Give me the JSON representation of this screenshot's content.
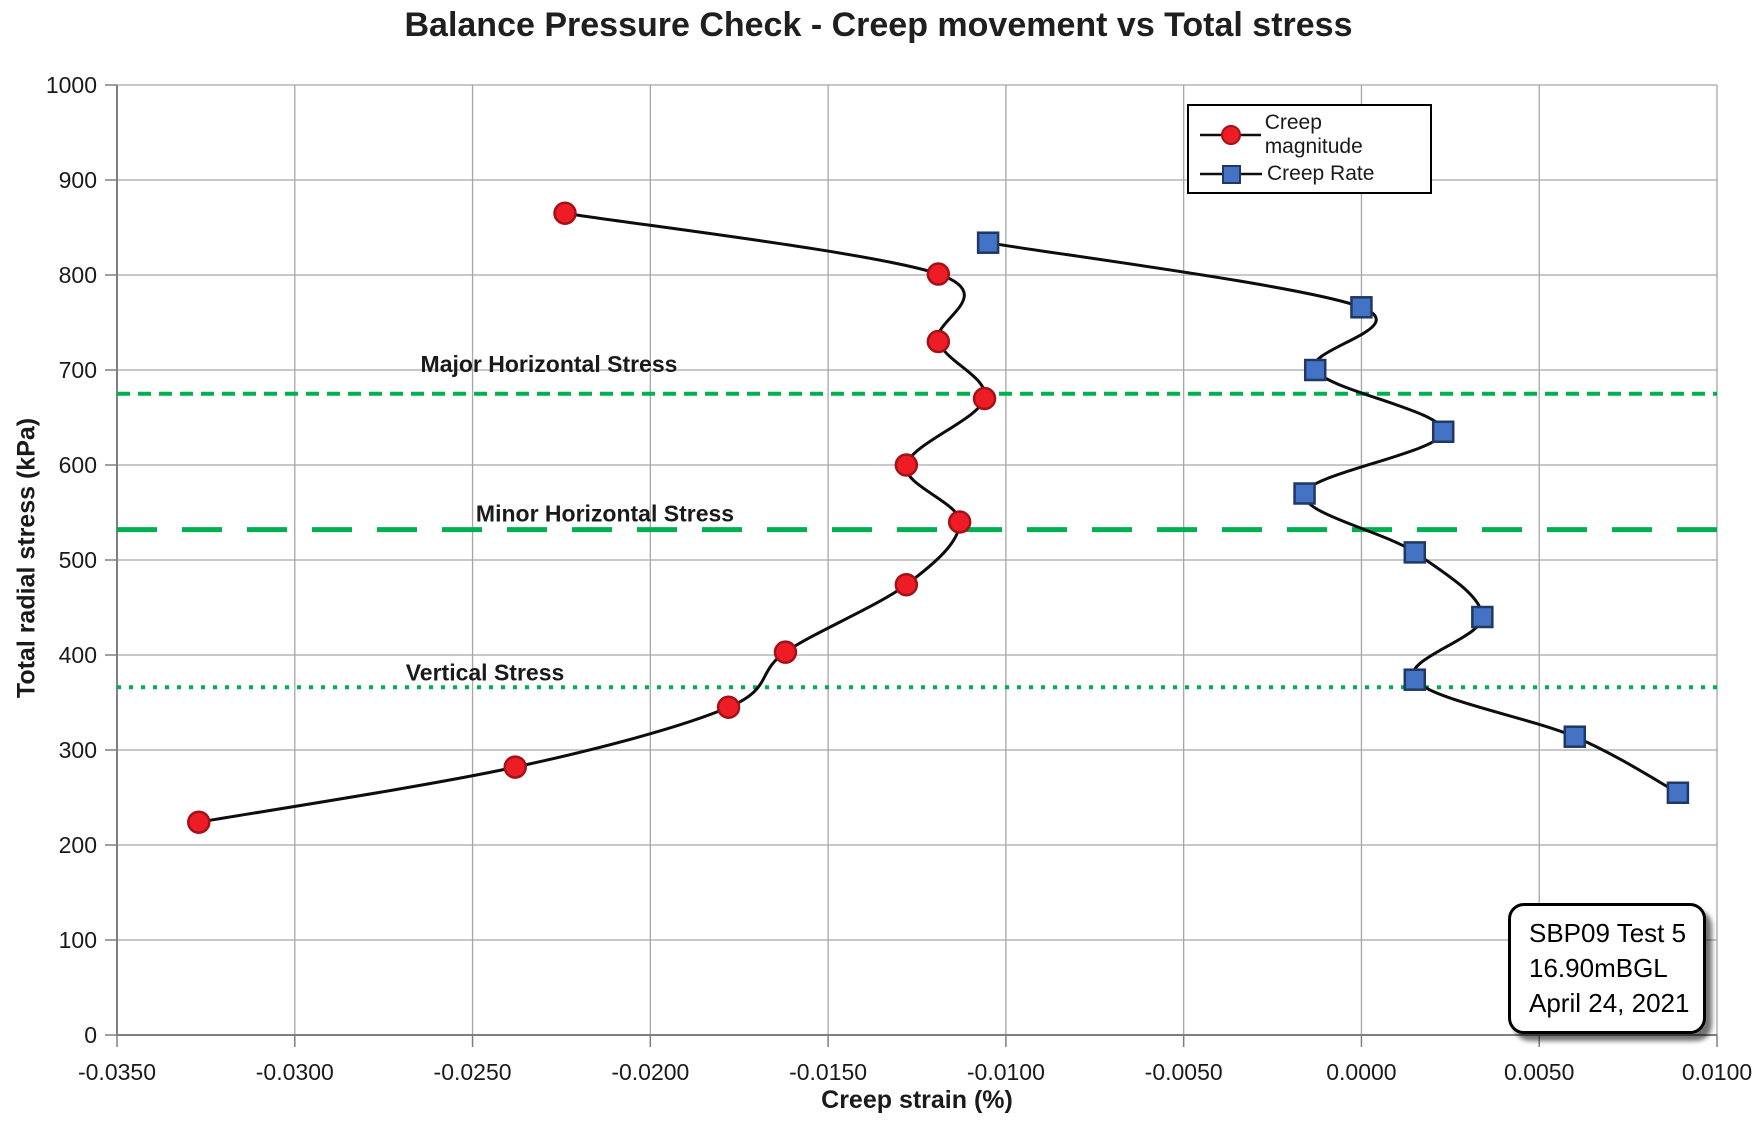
{
  "chart_data": {
    "type": "line",
    "title": "Balance Pressure Check - Creep movement vs Total stress",
    "xlabel": "Creep strain (%)",
    "ylabel": "Total radial stress (kPa)",
    "xlim": [
      -0.035,
      0.01
    ],
    "ylim": [
      0,
      1000
    ],
    "grid": true,
    "legend_position": "top-right",
    "x_ticks": [
      "-0.0350",
      "-0.0300",
      "-0.0250",
      "-0.0200",
      "-0.0150",
      "-0.0100",
      "-0.0050",
      "0.0000",
      "0.0050",
      "0.0100"
    ],
    "y_ticks": [
      "0",
      "100",
      "200",
      "300",
      "400",
      "500",
      "600",
      "700",
      "800",
      "900",
      "1000"
    ],
    "series": [
      {
        "name": "Creep magnitude",
        "marker": "circle",
        "marker_fill": "#ee1c25",
        "marker_stroke": "#a31218",
        "line_color": "#0d0d0d",
        "points": [
          [
            -0.0327,
            224
          ],
          [
            -0.0238,
            282
          ],
          [
            -0.0178,
            345
          ],
          [
            -0.0162,
            403
          ],
          [
            -0.0128,
            474
          ],
          [
            -0.0113,
            540
          ],
          [
            -0.0128,
            600
          ],
          [
            -0.0106,
            670
          ],
          [
            -0.0119,
            730
          ],
          [
            -0.0119,
            801
          ],
          [
            -0.0224,
            865
          ]
        ]
      },
      {
        "name": "Creep Rate",
        "marker": "square",
        "marker_fill": "#4472c4",
        "marker_stroke": "#1f3864",
        "line_color": "#0d0d0d",
        "points": [
          [
            0.0089,
            255
          ],
          [
            0.006,
            314
          ],
          [
            0.0015,
            374
          ],
          [
            0.0034,
            440
          ],
          [
            0.0015,
            508
          ],
          [
            -0.0016,
            570
          ],
          [
            0.0023,
            635
          ],
          [
            -0.0013,
            700
          ],
          [
            0.0,
            766
          ],
          [
            -0.0105,
            834
          ]
        ]
      }
    ],
    "reference_lines": [
      {
        "label": "Major Horizontal Stress",
        "value": 675,
        "style": "dashed",
        "color": "#00b050",
        "label_frac_x": 0.27,
        "label_gap": 22
      },
      {
        "label": "Minor Horizontal Stress",
        "value": 532,
        "style": "long-dash",
        "color": "#00b050",
        "label_frac_x": 0.305,
        "label_gap": 8
      },
      {
        "label": "Vertical Stress",
        "value": 366,
        "style": "dotted",
        "color": "#00b050",
        "label_frac_x": 0.23,
        "label_gap": 7
      }
    ],
    "annotation": {
      "lines": [
        "SBP09 Test 5",
        "16.90mBGL",
        "April 24, 2021"
      ]
    },
    "colors": {
      "grid": "#a6a6a6",
      "axis": "#7f7f7f",
      "tick_text": "#1a1a1a",
      "series_line": "#0d0d0d",
      "reference_green": "#00b050"
    }
  }
}
